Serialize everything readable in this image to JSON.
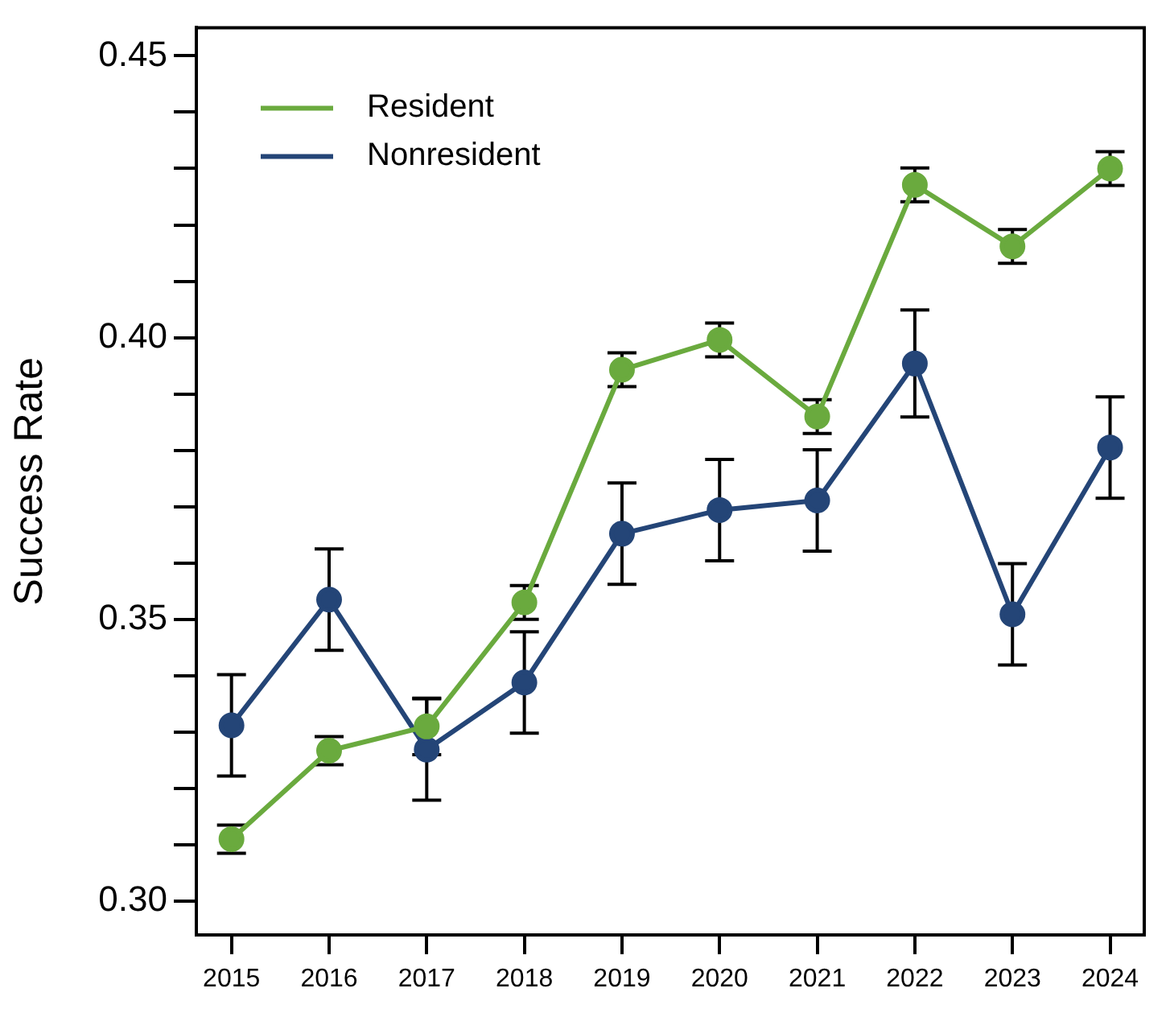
{
  "chart_data": {
    "type": "line",
    "ylabel": "Success Rate",
    "x": [
      2015,
      2016,
      2017,
      2018,
      2019,
      2020,
      2021,
      2022,
      2023,
      2024
    ],
    "xlim": [
      2014.64,
      2024.35
    ],
    "xticks": [
      2015,
      2016,
      2017,
      2018,
      2019,
      2020,
      2021,
      2022,
      2023,
      2024
    ],
    "ylim": [
      0.294,
      0.455
    ],
    "yticks": [
      {
        "value": 0.3,
        "label": "0.30"
      },
      {
        "value": 0.31,
        "label": null
      },
      {
        "value": 0.32,
        "label": null
      },
      {
        "value": 0.33,
        "label": null
      },
      {
        "value": 0.34,
        "label": null
      },
      {
        "value": 0.35,
        "label": "0.35"
      },
      {
        "value": 0.36,
        "label": null
      },
      {
        "value": 0.37,
        "label": null
      },
      {
        "value": 0.38,
        "label": null
      },
      {
        "value": 0.39,
        "label": null
      },
      {
        "value": 0.4,
        "label": "0.40"
      },
      {
        "value": 0.41,
        "label": null
      },
      {
        "value": 0.42,
        "label": null
      },
      {
        "value": 0.43,
        "label": null
      },
      {
        "value": 0.44,
        "label": null
      },
      {
        "value": 0.45,
        "label": "0.45"
      }
    ],
    "series": [
      {
        "name": "Resident",
        "color": "#6aaa3e",
        "values": [
          0.311,
          0.3267,
          0.331,
          0.353,
          0.3943,
          0.3996,
          0.386,
          0.4271,
          0.4162,
          0.43
        ],
        "errors": [
          0.0025,
          0.0025,
          0.005,
          0.003,
          0.003,
          0.003,
          0.003,
          0.003,
          0.003,
          0.003
        ]
      },
      {
        "name": "Nonresident",
        "color": "#244577",
        "values": [
          0.3312,
          0.3535,
          0.3269,
          0.3388,
          0.3652,
          0.3694,
          0.3711,
          0.3954,
          0.3509,
          0.3805
        ],
        "errors": [
          0.009,
          0.009,
          0.009,
          0.009,
          0.009,
          0.009,
          0.009,
          0.0095,
          0.009,
          0.009
        ]
      }
    ],
    "legend": "top left",
    "marker": "circle",
    "line_style": "solid",
    "grid": false
  }
}
